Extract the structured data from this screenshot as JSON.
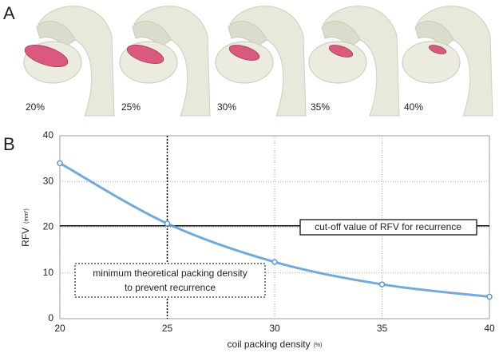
{
  "panel_labels": [
    "A",
    "B"
  ],
  "render_labels": [
    "20%",
    "25%",
    "30%",
    "35%",
    "40%"
  ],
  "chart_data": {
    "type": "line",
    "x_label": "coil packing density",
    "x_label_unit": "(%)",
    "y_label": "RFV",
    "y_label_unit": "(mm³)",
    "x": [
      20,
      25,
      30,
      35,
      40
    ],
    "series": [
      {
        "color": "#5b9bd5",
        "values": [
          34,
          20.8,
          12.4,
          7.5,
          4.8
        ]
      }
    ],
    "xlim": [
      20,
      40
    ],
    "xticks": [
      20,
      25,
      30,
      35,
      40
    ],
    "ylim": [
      0,
      40
    ],
    "yticks": [
      0,
      10,
      20,
      30,
      40
    ],
    "grid": true,
    "hline": {
      "value": 20.3,
      "label": "cut-off value of RFV for recurrence"
    },
    "vline": {
      "value": 25,
      "label": [
        "minimum theoretical packing density",
        "to prevent recurrence"
      ]
    }
  }
}
